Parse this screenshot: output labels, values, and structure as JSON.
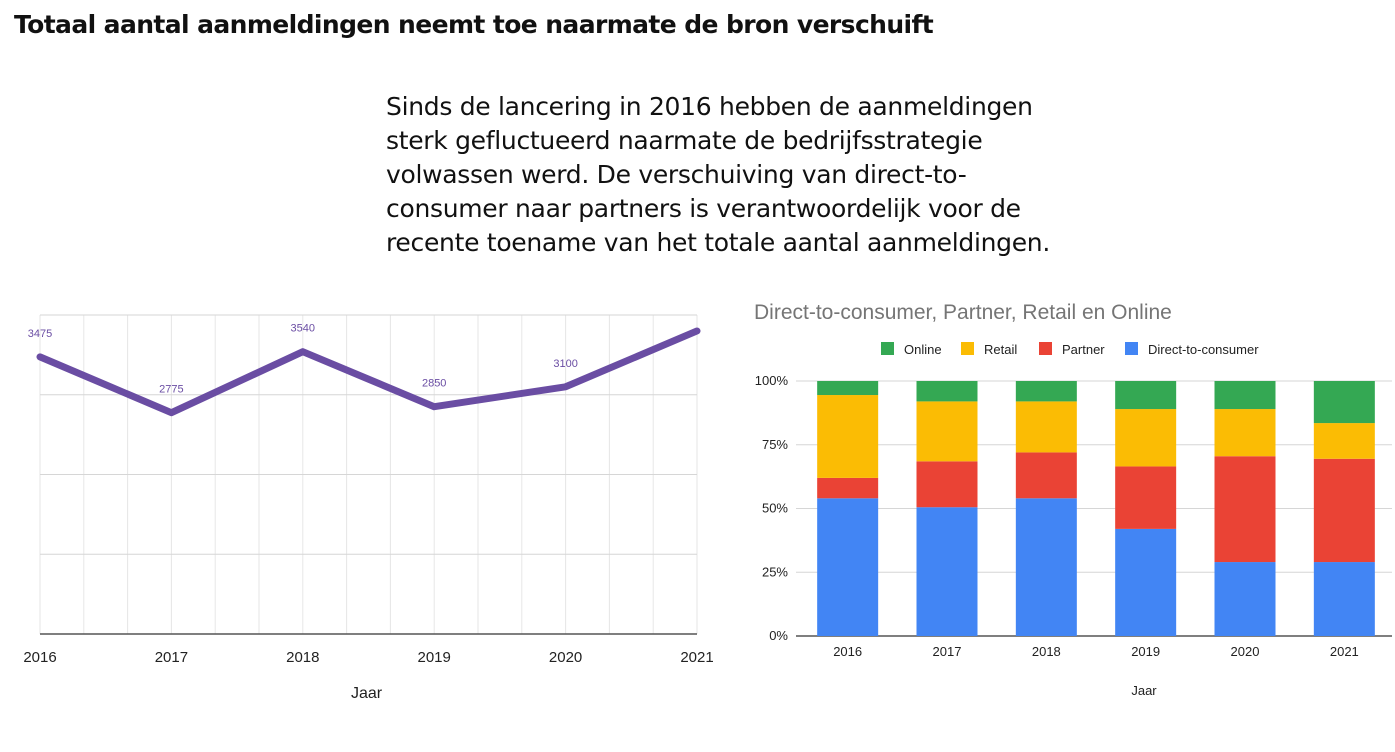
{
  "slide": {
    "title": "Totaal aantal aanmeldingen neemt toe naarmate de bron verschuift",
    "body": "Sinds de lancering in 2016 hebben de aanmeldingen sterk gefluctueerd naarmate de bedrijfsstrategie volwassen werd. De verschuiving van direct-to-consumer naar partners is verantwoordelijk voor de recente toename van het totale aantal aanmeldingen."
  },
  "chart_data": [
    {
      "type": "line",
      "title": "",
      "xlabel": "Jaar",
      "ylabel": "",
      "x": [
        "2016",
        "2017",
        "2018",
        "2019",
        "2020",
        "2021"
      ],
      "series": [
        {
          "values": [
            3475,
            2775,
            3540,
            2850,
            3100,
            3800
          ],
          "data_labels": [
            "3475",
            "2775",
            "3540",
            "2850",
            "3100",
            null
          ],
          "color": "#6a4da3"
        }
      ],
      "ylim": [
        0,
        4000
      ],
      "grid": true,
      "legend": "none"
    },
    {
      "type": "bar",
      "stacked": "percent",
      "title": "Direct-to-consumer, Partner, Retail en Online",
      "xlabel": "Jaar",
      "ylabel": "",
      "categories": [
        "2016",
        "2017",
        "2018",
        "2019",
        "2020",
        "2021"
      ],
      "y_ticks": [
        "0%",
        "25%",
        "50%",
        "75%",
        "100%"
      ],
      "ylim": [
        0,
        100
      ],
      "legend": "top",
      "grid": true,
      "series": [
        {
          "name": "Direct-to-consumer",
          "color": "#4285f4",
          "values": [
            54,
            50.5,
            54,
            42,
            29,
            29
          ]
        },
        {
          "name": "Partner",
          "color": "#ea4335",
          "values": [
            8,
            18,
            18,
            24.5,
            41.5,
            40.5
          ]
        },
        {
          "name": "Retail",
          "color": "#fbbc04",
          "values": [
            32.5,
            23.5,
            20,
            22.5,
            18.5,
            14
          ]
        },
        {
          "name": "Online",
          "color": "#34a853",
          "values": [
            5.5,
            8,
            8,
            11,
            11,
            16.5
          ]
        }
      ],
      "legend_order": [
        "Online",
        "Retail",
        "Partner",
        "Direct-to-consumer"
      ]
    }
  ]
}
